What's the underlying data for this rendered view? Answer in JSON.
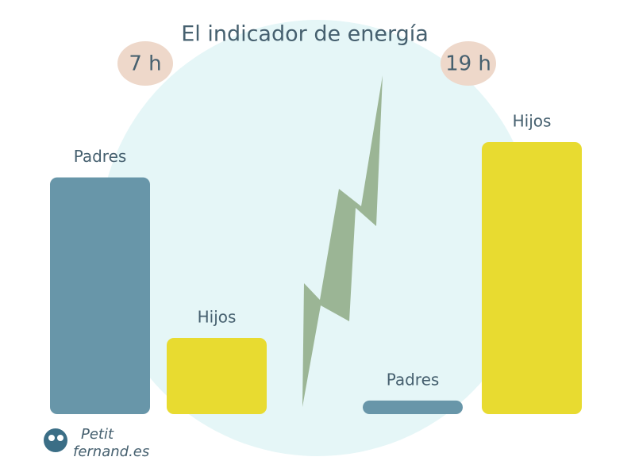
{
  "chart_data": {
    "type": "bar",
    "title": "El indicador de energía",
    "categories": [
      "7 h",
      "19 h"
    ],
    "series": [
      {
        "name": "Padres",
        "color": "#6896a9",
        "values": [
          87,
          5
        ]
      },
      {
        "name": "Hijos",
        "color": "#e8db30",
        "values": [
          28,
          100
        ]
      }
    ],
    "logo": [
      "Petit",
      "fernand.es"
    ]
  }
}
